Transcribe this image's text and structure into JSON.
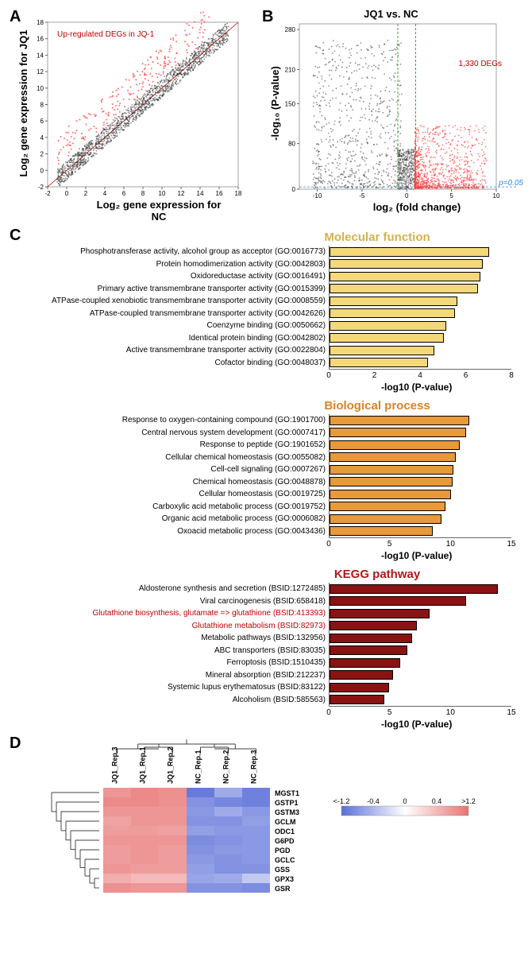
{
  "panelA": {
    "label": "A",
    "xlabel": "Log₂ gene expression for NC",
    "ylabel": "Log₂ gene expression for JQ1",
    "inset": "Up-regulated DEGs in JQ-1",
    "inset_color": "#c00000",
    "x_ticks": [
      -2,
      0,
      2,
      4,
      6,
      8,
      10,
      12,
      14,
      16,
      18
    ],
    "y_ticks": [
      -2,
      0,
      2,
      4,
      6,
      8,
      10,
      12,
      14,
      16,
      18
    ],
    "diag_color": "#c00000",
    "dot_main_color": "#333333",
    "dot_deg_color": "#ff4040",
    "n_main": 1500,
    "n_deg": 220
  },
  "panelB": {
    "label": "B",
    "title": "JQ1 vs. NC",
    "xlabel": "log₂ (fold change)",
    "ylabel": "-log₁₀ (P-value)",
    "deg_text": "1,330 DEGs",
    "deg_color": "#c00000",
    "pcut_label": "p=0.05",
    "pcut_color": "#2e8be6",
    "vthresh_color": "#009900",
    "xlim": [
      -12,
      10
    ],
    "ylim": [
      0,
      290
    ],
    "x_ticks": [
      -10,
      -5,
      0,
      5,
      10
    ],
    "y_ticks": [
      0,
      80,
      150,
      210,
      280
    ],
    "n_up": 900,
    "n_down": 700,
    "dot_down_color": "#333333",
    "dot_up_color": "#ff4040"
  },
  "panelC": {
    "label": "C",
    "axis_title": "-log10 (P-value)",
    "sections": [
      {
        "title": "Molecular function",
        "title_color": "#d4b24c",
        "bar_color": "#f4d87a",
        "xmax": 8,
        "xtick_step": 2,
        "items": [
          {
            "label": "Phosphotransferase activity, alcohol group as acceptor (GO:0016773)",
            "value": 7.0
          },
          {
            "label": "Protein homodimerization activity (GO:0042803)",
            "value": 6.7
          },
          {
            "label": "Oxidoreductase activity (GO:0016491)",
            "value": 6.6
          },
          {
            "label": "Primary active transmembrane transporter activity (GO:0015399)",
            "value": 6.5
          },
          {
            "label": "ATPase-coupled xenobiotic transmembrane transporter activity (GO:0008559)",
            "value": 5.6
          },
          {
            "label": "ATPase-coupled transmembrane transporter activity (GO:0042626)",
            "value": 5.5
          },
          {
            "label": "Coenzyme binding (GO:0050662)",
            "value": 5.1
          },
          {
            "label": "Identical protein binding (GO:0042802)",
            "value": 5.0
          },
          {
            "label": "Active transmembrane transporter activity (GO:0022804)",
            "value": 4.6
          },
          {
            "label": "Cofactor binding (GO:0048037)",
            "value": 4.3
          }
        ]
      },
      {
        "title": "Biological process",
        "title_color": "#d98324",
        "bar_color": "#e8993a",
        "xmax": 15,
        "xtick_step": 5,
        "items": [
          {
            "label": "Response to oxygen-containing compound (GO:1901700)",
            "value": 11.5
          },
          {
            "label": "Central nervous system development (GO:0007417)",
            "value": 11.2
          },
          {
            "label": "Response to peptide (GO:1901652)",
            "value": 10.7
          },
          {
            "label": "Cellular chemical homeostasis (GO:0055082)",
            "value": 10.4
          },
          {
            "label": "Cell-cell signaling (GO:0007267)",
            "value": 10.2
          },
          {
            "label": "Chemical homeostasis (GO:0048878)",
            "value": 10.1
          },
          {
            "label": "Cellular homeostasis (GO:0019725)",
            "value": 10.0
          },
          {
            "label": "Carboxylic acid metabolic process (GO:0019752)",
            "value": 9.5
          },
          {
            "label": "Organic acid metabolic process (GO:0006082)",
            "value": 9.2
          },
          {
            "label": "Oxoacid metabolic process (GO:0043436)",
            "value": 8.5
          }
        ]
      },
      {
        "title": "KEGG pathway",
        "title_color": "#b01818",
        "bar_color": "#8a1212",
        "xmax": 15,
        "xtick_step": 5,
        "items": [
          {
            "label": "Aldosterone synthesis and secretion (BSID:1272485)",
            "value": 13.8
          },
          {
            "label": "Viral carcinogenesis (BSID:658418)",
            "value": 11.2
          },
          {
            "label": "Glutathione biosynthesis, glutamate => glutathione (BSID:413393)",
            "value": 8.2,
            "label_color": "#c00000"
          },
          {
            "label": "Glutathione metabolism (BSID:82973)",
            "value": 7.2,
            "label_color": "#c00000"
          },
          {
            "label": "Metabolic pathways (BSID:132956)",
            "value": 6.8
          },
          {
            "label": "ABC transporters (BSID:83035)",
            "value": 6.4
          },
          {
            "label": "Ferroptosis (BSID:1510435)",
            "value": 5.8
          },
          {
            "label": "Mineral absorption (BSID:212237)",
            "value": 5.2
          },
          {
            "label": "Systemic lupus erythematosus (BSID:83122)",
            "value": 4.9
          },
          {
            "label": "Alcoholism (BSID:585563)",
            "value": 4.5
          }
        ]
      }
    ]
  },
  "panelD": {
    "label": "D",
    "samples": [
      "JQ1_Rep.3",
      "JQ1_Rep.1",
      "JQ1_Rep.2",
      "NC_Rep.1",
      "NC_Rep.2",
      "NC_Rep.3"
    ],
    "genes": [
      "MGST1",
      "GSTP1",
      "GSTM3",
      "GCLM",
      "ODC1",
      "G6PD",
      "PGD",
      "GCLC",
      "GSS",
      "GPX3",
      "GSR"
    ],
    "scale_labels": [
      "<-1.2",
      "-0.4",
      "0",
      "0.4",
      ">1.2"
    ],
    "low_color": "#5a6fd8",
    "mid_color": "#ffffff",
    "high_color": "#e87373",
    "matrix": [
      [
        0.9,
        1.0,
        0.95,
        -1.1,
        -0.7,
        -1.05
      ],
      [
        1.0,
        1.0,
        0.95,
        -0.9,
        -1.0,
        -1.05
      ],
      [
        0.9,
        0.9,
        0.9,
        -0.85,
        -0.7,
        -0.85
      ],
      [
        0.8,
        0.9,
        0.9,
        -0.9,
        -0.9,
        -0.8
      ],
      [
        0.85,
        0.85,
        0.8,
        -0.8,
        -0.85,
        -0.85
      ],
      [
        0.9,
        0.9,
        0.9,
        -0.95,
        -0.9,
        -0.85
      ],
      [
        0.85,
        0.9,
        0.85,
        -0.9,
        -0.85,
        -0.85
      ],
      [
        0.85,
        0.9,
        0.85,
        -0.85,
        -0.9,
        -0.85
      ],
      [
        0.9,
        0.85,
        0.85,
        -0.8,
        -0.9,
        -0.9
      ],
      [
        0.7,
        0.6,
        0.6,
        -0.75,
        -0.7,
        -0.45
      ],
      [
        0.95,
        0.9,
        0.9,
        -0.9,
        -0.9,
        -0.95
      ]
    ]
  }
}
